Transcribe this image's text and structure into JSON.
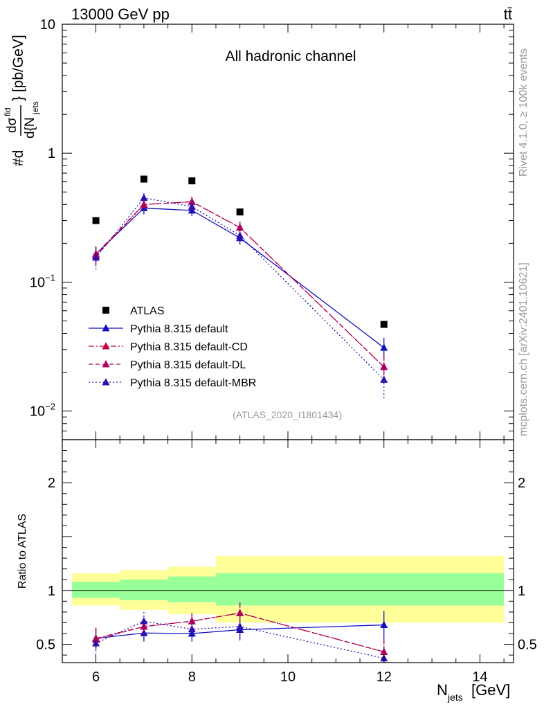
{
  "header": {
    "left": "13000 GeV pp",
    "right": "tt̄"
  },
  "side_labels": {
    "rivet": "Rivet 4.1.0, ≥ 100k events",
    "mcplots": "mcplots.cern.ch [arXiv:2401.10621]"
  },
  "colors": {
    "atlas": "#000000",
    "default": "#1010c0",
    "cd": "#c00040",
    "dl": "#b00060",
    "mbr": "#3010b0",
    "band_outer": "#ffff99",
    "band_inner": "#99ff99"
  },
  "chart_data": [
    {
      "type": "line",
      "title": "All hadronic channel",
      "watermark": "(ATLAS_2020_I1801434)",
      "ylabel": "#d dσ^{fid} / d{N_jets} [pb/GeV]",
      "yscale": "log",
      "ylim": [
        0.006,
        10
      ],
      "yticks": [
        {
          "value": 10,
          "label": "10"
        },
        {
          "value": 1,
          "label": "1"
        },
        {
          "value": 0.1,
          "base": "10",
          "exp": "−1"
        },
        {
          "value": 0.01,
          "base": "10",
          "exp": "−2"
        }
      ],
      "xlim": [
        5.3,
        14.7
      ],
      "xticks": [
        6,
        8,
        10,
        12,
        14
      ],
      "x": [
        6,
        7,
        8,
        9,
        12
      ],
      "legend": {
        "position": "bottom-left"
      },
      "series": [
        {
          "name": "ATLAS",
          "key": "atlas",
          "marker": "square",
          "values": [
            0.3,
            0.63,
            0.61,
            0.35,
            0.047
          ],
          "errors": [
            0,
            0,
            0,
            0,
            0
          ]
        },
        {
          "name": "Pythia 8.315 default",
          "key": "default",
          "marker": "triangle",
          "line": "solid",
          "values": [
            0.165,
            0.375,
            0.36,
            0.22,
            0.031
          ],
          "errors": [
            0.025,
            0.04,
            0.035,
            0.025,
            0.006
          ]
        },
        {
          "name": "Pythia 8.315 default-CD",
          "key": "cd",
          "marker": "triangle",
          "line": "dashdot",
          "values": [
            0.165,
            0.4,
            0.42,
            0.265,
            0.022
          ],
          "errors": [
            0.025,
            0.04,
            0.04,
            0.03,
            0.005
          ]
        },
        {
          "name": "Pythia 8.315 default-DL",
          "key": "dl",
          "marker": "triangle",
          "line": "dashed",
          "values": [
            0.16,
            0.4,
            0.42,
            0.265,
            0.022
          ],
          "errors": [
            0.025,
            0.04,
            0.04,
            0.03,
            0.005
          ]
        },
        {
          "name": "Pythia 8.315 default-MBR",
          "key": "mbr",
          "marker": "triangle",
          "line": "dotted",
          "values": [
            0.155,
            0.45,
            0.385,
            0.23,
            0.0175
          ],
          "errors": [
            0.03,
            0.04,
            0.035,
            0.025,
            0.005
          ]
        }
      ]
    },
    {
      "type": "line",
      "title": "",
      "ylabel": "Ratio to ATLAS",
      "xlabel": "N_jets [GeV]",
      "xlabel_main": "N",
      "xlabel_sub": "jets",
      "xlabel_unit": "[GeV]",
      "ylim": [
        0.33,
        2.4
      ],
      "yticks": [
        {
          "value": 0.5,
          "label": "0.5"
        },
        {
          "value": 1,
          "label": "1"
        },
        {
          "value": 2,
          "label": "2"
        }
      ],
      "xlim": [
        5.3,
        14.7
      ],
      "xticks": [
        6,
        8,
        10,
        12,
        14
      ],
      "bands": [
        {
          "x0": 5.5,
          "x1": 6.5,
          "outer": [
            0.86,
            1.16
          ],
          "inner": [
            0.93,
            1.08
          ]
        },
        {
          "x0": 6.5,
          "x1": 7.5,
          "outer": [
            0.82,
            1.19
          ],
          "inner": [
            0.91,
            1.1
          ]
        },
        {
          "x0": 7.5,
          "x1": 8.5,
          "outer": [
            0.78,
            1.22
          ],
          "inner": [
            0.89,
            1.13
          ]
        },
        {
          "x0": 8.5,
          "x1": 14.5,
          "outer": [
            0.7,
            1.32
          ],
          "inner": [
            0.86,
            1.16
          ]
        }
      ],
      "x": [
        6,
        7,
        8,
        9,
        12
      ],
      "series": [
        {
          "name": "Pythia 8.315 default",
          "key": "default",
          "line": "solid",
          "values": [
            0.555,
            0.605,
            0.6,
            0.635,
            0.68
          ],
          "errors": [
            0.1,
            0.08,
            0.075,
            0.1,
            0.13
          ]
        },
        {
          "name": "Pythia 8.315 default-CD",
          "key": "cd",
          "line": "dashdot",
          "values": [
            0.555,
            0.665,
            0.715,
            0.79,
            0.43
          ],
          "errors": [
            0.1,
            0.08,
            0.075,
            0.1,
            0.12
          ]
        },
        {
          "name": "Pythia 8.315 default-DL",
          "key": "dl",
          "line": "dashed",
          "values": [
            0.545,
            0.665,
            0.715,
            0.79,
            0.43
          ],
          "errors": [
            0.1,
            0.08,
            0.075,
            0.1,
            0.12
          ]
        },
        {
          "name": "Pythia 8.315 default-MBR",
          "key": "mbr",
          "line": "dotted",
          "values": [
            0.51,
            0.715,
            0.64,
            0.665,
            0.37
          ],
          "errors": [
            0.1,
            0.085,
            0.08,
            0.1,
            0.1
          ]
        }
      ]
    }
  ]
}
